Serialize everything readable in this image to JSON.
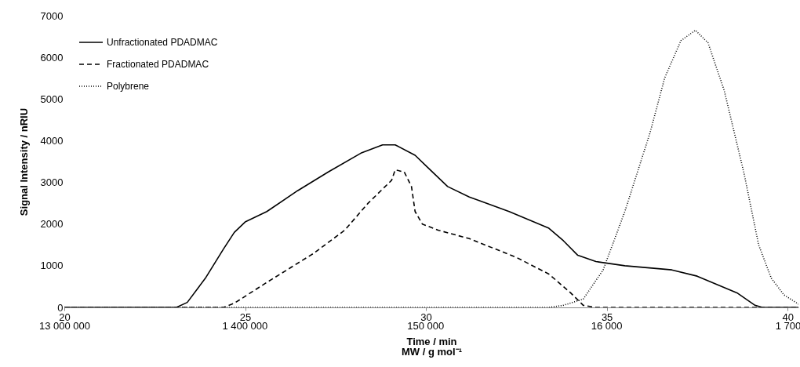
{
  "chart_data": {
    "type": "line",
    "xlabel": "Time / min",
    "x2label": "MW / g mol⁻¹",
    "log": "x2",
    "x2lim": [
      13000000,
      1490
    ],
    "x2ticks": [
      {
        "value": 13000000,
        "label": "13 000 000"
      },
      {
        "value": 1400000,
        "label": "1 400 000"
      },
      {
        "value": 150000,
        "label": "150 000"
      },
      {
        "value": 16000,
        "label": "16 000"
      },
      {
        "value": 1700,
        "label": "1 700"
      }
    ],
    "ylabel": "Signal Intensity  / nRIU",
    "xlim": [
      20,
      40.3
    ],
    "xticks": [
      20,
      25,
      30,
      35,
      40
    ],
    "ylim": [
      0,
      7000
    ],
    "yticks": [
      0,
      1000,
      2000,
      3000,
      4000,
      5000,
      6000,
      7000
    ],
    "grid": false,
    "legend": "top left",
    "series": [
      {
        "name": "Unfractionated PDADMAC",
        "color": "#000000",
        "line_style": "solid",
        "x": [
          20,
          23.1,
          23.4,
          23.9,
          24.4,
          24.7,
          25.0,
          25.6,
          26.45,
          27.3,
          28.2,
          28.8,
          29.15,
          29.7,
          30.0,
          30.6,
          31.2,
          32.3,
          33.4,
          33.8,
          34.2,
          34.7,
          35.5,
          36.8,
          37.5,
          38.6,
          39.1,
          39.3,
          40.3
        ],
        "values": [
          0,
          0,
          120,
          700,
          1400,
          1800,
          2050,
          2300,
          2800,
          3250,
          3700,
          3900,
          3900,
          3650,
          3400,
          2900,
          2650,
          2300,
          1900,
          1600,
          1250,
          1100,
          1000,
          900,
          750,
          350,
          50,
          0,
          0
        ]
      },
      {
        "name": "Fractionated PDADMAC",
        "color": "#000000",
        "line_style": "dashed",
        "x": [
          20,
          24.4,
          24.7,
          25.6,
          26.9,
          27.75,
          28.4,
          29.05,
          29.15,
          29.4,
          29.6,
          29.7,
          29.9,
          30.35,
          31.2,
          32.5,
          33.4,
          34.0,
          34.35,
          34.7,
          40.3
        ],
        "values": [
          0,
          0,
          100,
          600,
          1300,
          1850,
          2500,
          3050,
          3300,
          3250,
          2900,
          2300,
          2000,
          1850,
          1650,
          1200,
          800,
          350,
          50,
          0,
          0
        ]
      },
      {
        "name": "Polybrene",
        "color": "#000000",
        "line_style": "dotted",
        "x": [
          20,
          33.4,
          33.8,
          34.35,
          34.9,
          35.5,
          36.2,
          36.6,
          37.05,
          37.45,
          37.8,
          38.25,
          38.8,
          39.2,
          39.55,
          39.9,
          40.3
        ],
        "values": [
          0,
          0,
          50,
          200,
          900,
          2300,
          4200,
          5500,
          6400,
          6650,
          6350,
          5200,
          3200,
          1500,
          700,
          300,
          80
        ]
      }
    ]
  }
}
